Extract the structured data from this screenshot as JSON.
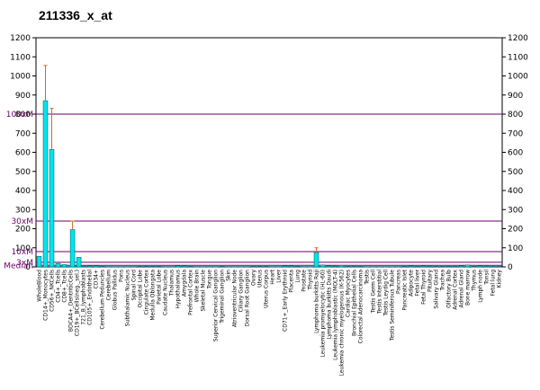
{
  "chart_data": {
    "type": "bar",
    "title": "211336_x_at",
    "ylim": [
      0,
      1200
    ],
    "yticks": [
      0,
      100,
      200,
      300,
      400,
      500,
      600,
      700,
      800,
      900,
      1000,
      1100,
      1200
    ],
    "ytick_labels": [
      "0",
      "100",
      "200",
      "300",
      "400",
      "500",
      "600",
      "700",
      "800",
      "900",
      "1000",
      "1100",
      "1200"
    ],
    "categories": [
      "WholeBlood",
      "CD14+_Monocytes",
      "CD56+_NKCells",
      "CD4+_Tcells",
      "CD8+_Tcells",
      "BDCA4+_DentriticCells",
      "CD19+_BCells(neg._sel.)",
      "721_B_lymphoblasts",
      "CD105+_Endothelial",
      "CD34+",
      "Cerebellum Peduncles",
      "Cerebellum",
      "Globus Pallidus",
      "Pons",
      "Subthalamic Nucleus",
      "Spinal Cord",
      "Occipital Lobe",
      "Cingulate Cortex",
      "Medulla Oblongata",
      "Parietal Lobe",
      "Caudate Nucleus",
      "Thalamus",
      "Hypothalamus",
      "Amygdala",
      "Prefrontal Cortex",
      "Whole Brain",
      "Skeletal Muscle",
      "Tongue",
      "Superior Cervical Ganglion",
      "Trigeminal Ganglion",
      "Skin",
      "Atrioventricular Node",
      "Ciliary Ganglion",
      "Dorsal Root Ganglion",
      "Ovary",
      "Uterus",
      "Uterus Corpus",
      "Heart",
      "Liver",
      "CD71+_Early Erythroid",
      "Placenta",
      "Lung",
      "Prostate",
      "Thyroid",
      "Lymphoma burkitts Raji",
      "Leukemia promyelocytic (HL-60)",
      "Lymphoma burkitts Daudi",
      "Leukemia lymphoblastic (MOLT-4)",
      "Leukemia chronic myelogenous (K-562)",
      "Cardiac Myocytes",
      "Bronchial Epithelial Cells",
      "Colorectal Adenocarcinoma",
      "Testis",
      "Testis Germ Cell",
      "Testis Interstitial",
      "Testis Leydig Cell",
      "Testis Seminiferous Tubule",
      "Pancreas",
      "Pancreatic Islet",
      "Adipocyte",
      "Fetal liver",
      "Fetal Thyroid",
      "Pituitary",
      "Salivary Gland",
      "Trachea",
      "Olfactory Bulb",
      "Adrenal Cortex",
      "Adrenal Gland",
      "Bone marrow",
      "Thymus",
      "Lymph node",
      "Tonsil",
      "Fetal lung",
      "Kidney"
    ],
    "labels_shown": [
      "WholeBlood",
      "CD14+_Monocytes",
      "CD56+_NKCells",
      "CD4+_Tcells",
      "CD8+_Tcells",
      "BDCA4+_DentriticCells",
      "CD19+_BCells(neg._sel.)",
      "721_B_lymphoblasts",
      "CD105+_Endothelial",
      "CD34+",
      "Cerebellum Peduncles",
      "Cerebellum",
      "Globus Pallidus",
      "Pons",
      "Subthalamic Nucleus",
      "Spinal Cord",
      "Occipital Lobe",
      "Cingulate Cortex",
      "Medulla Oblongata",
      "Parietal Lobe",
      "Caudate Nucleus",
      "Thalamus",
      "Hypothalamus",
      "Amygdala",
      "Prefrontal Cortex",
      "Whole Brain",
      "Skeletal Muscle",
      "Tongue",
      "Superior Cervical Ganglion",
      "Trigeminal Ganglion",
      "Skin",
      "Atrioventricular Node",
      "Ciliary Ganglion",
      "Dorsal Root Ganglion",
      "Ovary",
      "Uterus",
      "Uterus Corpus",
      "Heart",
      "Liver",
      "CD71+_Early Erythroid",
      "Placenta",
      "Lung",
      "Prostate",
      "Thyroid",
      "Lymphoma burkitts Raji",
      "Leukemia promyelocytic (HL-60)",
      "Lymphoma burkitts Daudi",
      "Leukemia lymphoblastic (MOLT-4)",
      "Leukemia chronic myelogenous (K-562)",
      "Cardiac Myocytes",
      "Bronchial Epithelial Cells",
      "Colorectal Adenocarcinoma",
      "Testis",
      "Testis Germ Cell",
      "Testis Interstitial",
      "Testis Leydig Cell",
      "Testis Seminiferous Tubule",
      "Pancreas",
      "Pancreatic Islet",
      "Adipocyte",
      "Fetal liver",
      "Fetal Thyroid",
      "Pituitary",
      "Salivary Gland",
      "Trachea",
      "Olfactory Bulb",
      "Adrenal Cortex",
      "Adrenal Gland",
      "Bone marrow",
      "Thymus",
      "Lymph node",
      "Tonsil",
      "Fetal lung",
      "Kidney"
    ],
    "values": [
      55,
      870,
      615,
      18,
      12,
      8,
      5,
      4,
      5,
      6,
      3,
      2,
      2,
      2,
      2,
      2,
      3,
      3,
      3,
      3,
      2,
      2,
      6,
      5,
      3,
      2,
      2,
      2,
      2,
      3,
      2,
      2,
      2,
      2,
      3,
      3,
      3,
      2,
      2,
      5,
      5,
      3,
      2,
      2,
      75,
      10,
      5,
      4,
      8,
      3,
      3,
      3,
      2,
      2,
      2,
      2,
      2,
      2,
      3,
      5,
      3,
      5,
      4,
      3,
      3,
      3,
      3,
      5,
      10,
      3,
      5,
      4,
      3,
      3
    ],
    "errors": [
      0,
      185,
      215,
      0,
      0,
      0,
      0,
      0,
      0,
      0,
      0,
      0,
      0,
      0,
      0,
      0,
      0,
      0,
      0,
      0,
      0,
      0,
      0,
      0,
      0,
      0,
      0,
      0,
      0,
      0,
      0,
      0,
      0,
      0,
      0,
      0,
      0,
      0,
      0,
      0,
      0,
      0,
      0,
      0,
      25,
      0,
      0,
      0,
      0,
      0,
      0,
      0,
      0,
      0,
      0,
      0,
      0,
      0,
      0,
      0,
      0,
      0,
      0,
      0,
      0,
      0,
      0,
      0,
      0,
      0,
      0,
      0,
      0,
      0
    ],
    "extra_bars": [
      {
        "category": "BDCA4+_DentriticCells",
        "value": 195,
        "error": 45
      },
      {
        "category": "CD19+_BCells(neg._sel.)",
        "value": 50,
        "error": 0
      }
    ],
    "reference_lines": [
      {
        "label": "100xM",
        "value": 800
      },
      {
        "label": "30xM",
        "value": 240
      },
      {
        "label": "10xM",
        "value": 80
      },
      {
        "label": "3xM",
        "value": 24
      },
      {
        "label": "Median",
        "value": 8
      }
    ],
    "colors": {
      "bar": "#00e5ee",
      "bar_edge": "#006a70",
      "error": "#d2691e",
      "ref_line": "#6a006a",
      "axis": "#000000"
    },
    "grid": false
  }
}
